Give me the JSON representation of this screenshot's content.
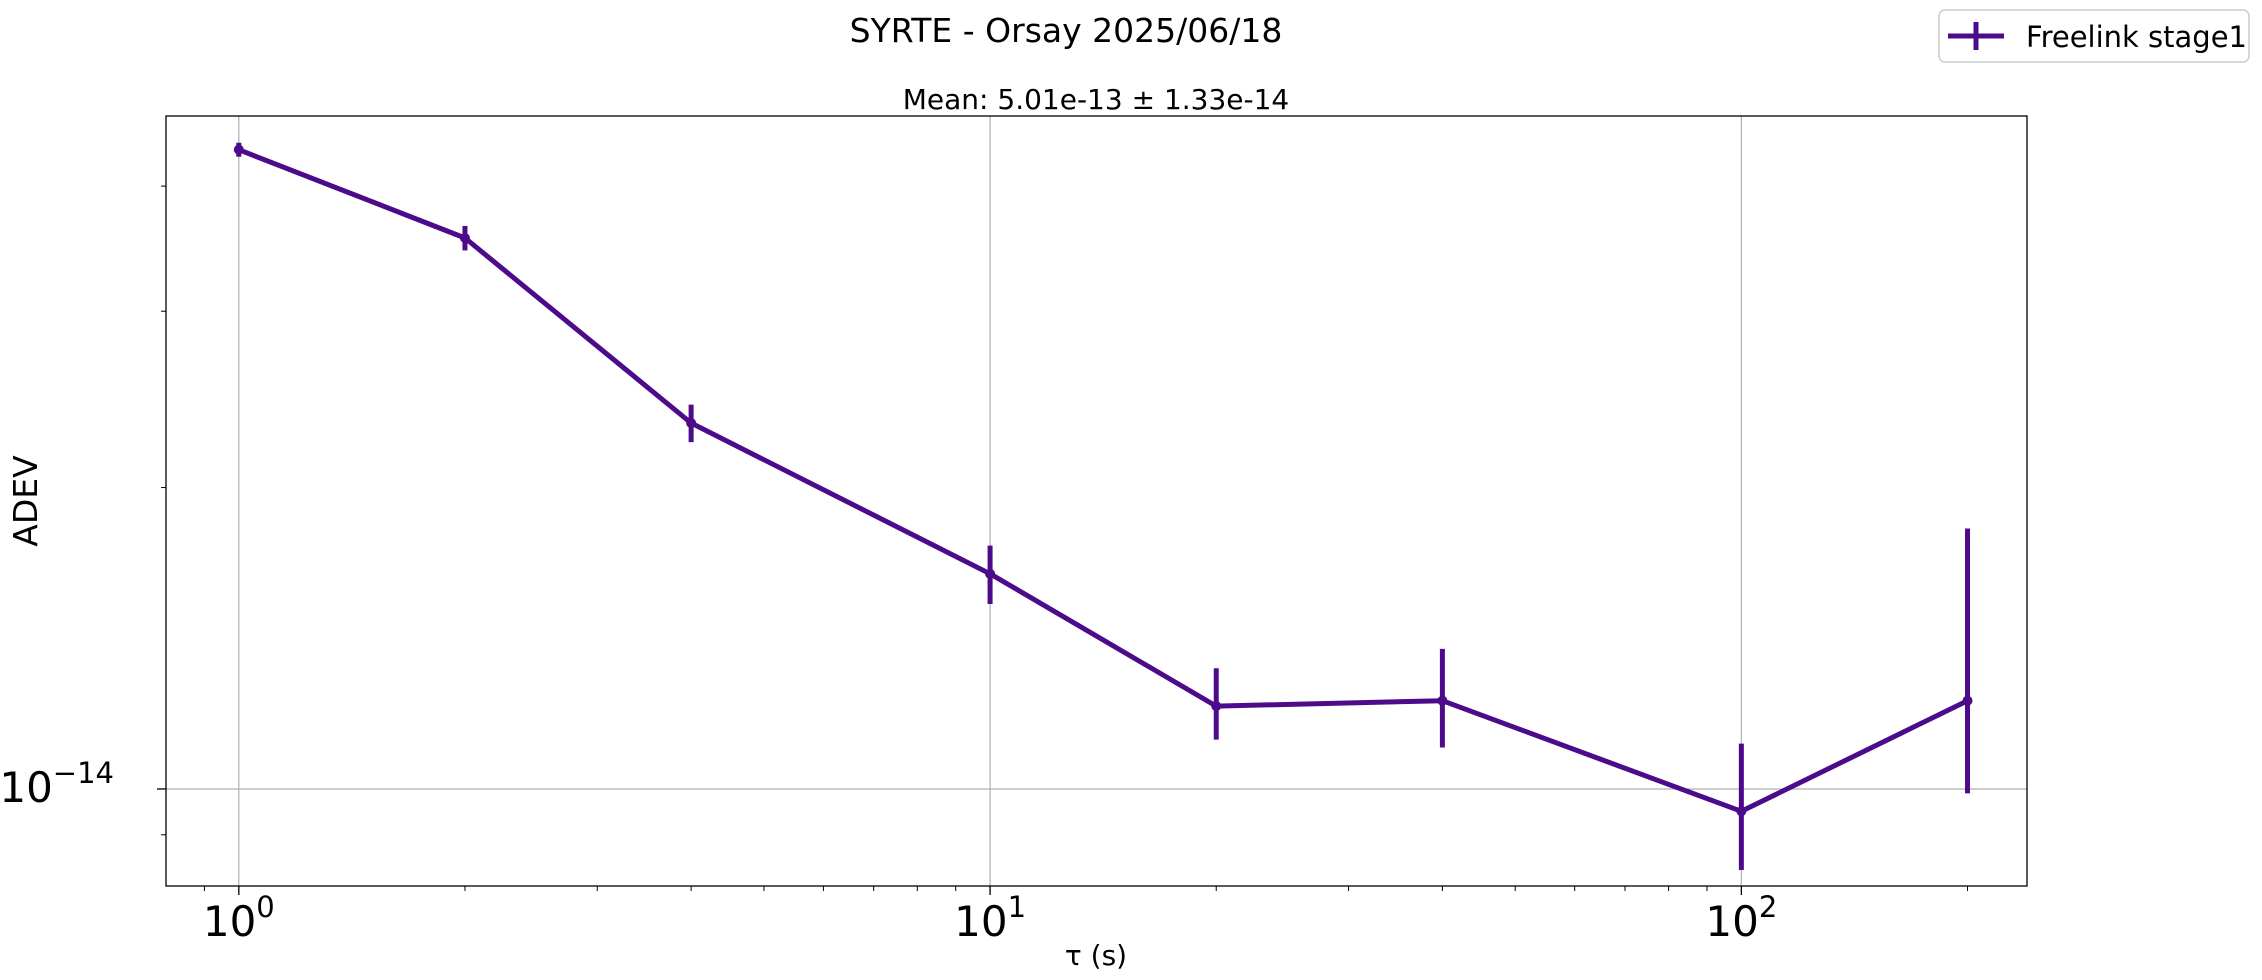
{
  "chart_data": {
    "type": "line",
    "title": "SYRTE - Orsay 2025/06/18",
    "subtitle": "Mean: 5.01e-13 ± 1.33e-14",
    "xlabel": "τ (s)",
    "ylabel": "ADEV",
    "x_scale": "log",
    "y_scale": "log",
    "xlim": [
      0.8,
      240
    ],
    "ylim": [
      8e-15,
      4.7e-14
    ],
    "x_ticks": [
      {
        "value": 1,
        "base": "10",
        "exp": "0"
      },
      {
        "value": 10,
        "base": "10",
        "exp": "1"
      },
      {
        "value": 100,
        "base": "10",
        "exp": "2"
      }
    ],
    "y_ticks": [
      {
        "value": 1e-14,
        "base": "10",
        "exp": "−14"
      }
    ],
    "grid": true,
    "legend_position": "top-right",
    "series": [
      {
        "name": "Freelink stage1",
        "color": "#4b0b8a",
        "x": [
          1,
          2,
          4,
          10,
          20,
          40,
          100,
          200
        ],
        "y": [
          4.35e-14,
          3.55e-14,
          2.32e-14,
          1.64e-14,
          1.21e-14,
          1.225e-14,
          9.5e-15,
          1.225e-14
        ],
        "yerr_low": [
          4.28e-14,
          3.45e-14,
          2.22e-14,
          1.53e-14,
          1.12e-14,
          1.1e-14,
          8.3e-15,
          9.9e-15
        ],
        "yerr_high": [
          4.42e-14,
          3.65e-14,
          2.42e-14,
          1.75e-14,
          1.32e-14,
          1.38e-14,
          1.11e-14,
          1.82e-14
        ]
      }
    ]
  }
}
